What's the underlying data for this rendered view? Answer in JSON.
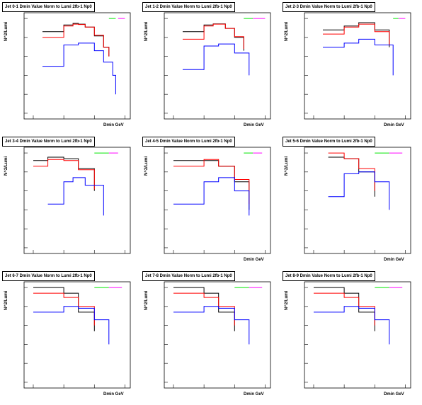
{
  "chart_data": [
    {
      "type": "line",
      "title": "Jet 0-1 Dmin Value Norm to Lumi 2fb-1 Np0",
      "xlabel": "Dmin GeV",
      "ylabel": "N^2/Lumi",
      "log_x": true,
      "log_y": true,
      "legend": {
        "placement": "top-right",
        "entries": []
      },
      "series": [
        {
          "color": "#000000",
          "points": [
            [
              0.2,
              2.0
            ],
            [
              1,
              4.5
            ],
            [
              2,
              5.5
            ],
            [
              3,
              5.0
            ],
            [
              5,
              3.5
            ],
            [
              10,
              1.2
            ],
            [
              20,
              0.3
            ],
            [
              30,
              0.1
            ]
          ]
        },
        {
          "color": "#ff0000",
          "points": [
            [
              0.2,
              1.0
            ],
            [
              1,
              4.0
            ],
            [
              2,
              5.0
            ],
            [
              3,
              4.8
            ],
            [
              5,
              3.5
            ],
            [
              10,
              1.3
            ],
            [
              20,
              0.3
            ],
            [
              30,
              0.1
            ]
          ]
        },
        {
          "color": "#0000ff",
          "points": [
            [
              0.2,
              0.03
            ],
            [
              1,
              0.4
            ],
            [
              3,
              0.5
            ],
            [
              10,
              0.2
            ],
            [
              20,
              0.05
            ],
            [
              40,
              0.01
            ],
            [
              50,
              0.001
            ]
          ]
        },
        {
          "color": "#00e600",
          "points": [
            [
              30,
              10
            ],
            [
              50,
              10
            ]
          ]
        },
        {
          "color": "#ff00ff",
          "points": [
            [
              60,
              10
            ],
            [
              100,
              10
            ]
          ]
        }
      ]
    },
    {
      "type": "line",
      "title": "Jet 1-2 Dmin Value Norm to Lumi 2fb-1 Np0",
      "xlabel": "Dmin GeV",
      "ylabel": "N^2/Lumi",
      "log_x": true,
      "log_y": true,
      "series": [
        {
          "color": "#000000",
          "points": [
            [
              0.2,
              2.0
            ],
            [
              1,
              4.5
            ],
            [
              2,
              5.2
            ],
            [
              5,
              3.0
            ],
            [
              10,
              1.0
            ],
            [
              20,
              0.2
            ]
          ]
        },
        {
          "color": "#ff0000",
          "points": [
            [
              0.2,
              0.8
            ],
            [
              1,
              4.0
            ],
            [
              2,
              5.0
            ],
            [
              5,
              3.0
            ],
            [
              10,
              1.1
            ],
            [
              20,
              0.25
            ]
          ]
        },
        {
          "color": "#0000ff",
          "points": [
            [
              0.2,
              0.02
            ],
            [
              1,
              0.35
            ],
            [
              3,
              0.45
            ],
            [
              10,
              0.15
            ],
            [
              30,
              0.01
            ]
          ]
        },
        {
          "color": "#00e600",
          "points": [
            [
              20,
              10
            ],
            [
              40,
              10
            ]
          ]
        },
        {
          "color": "#ff00ff",
          "points": [
            [
              40,
              10
            ],
            [
              100,
              10
            ]
          ]
        }
      ]
    },
    {
      "type": "line",
      "title": "Jet 2-3 Dmin Value Norm to Lumi 2fb-1 Np0",
      "xlabel": "Dmin GeV",
      "ylabel": "N^2/Lumi",
      "log_x": true,
      "log_y": true,
      "series": [
        {
          "color": "#000000",
          "points": [
            [
              0.2,
              2.5
            ],
            [
              1,
              4.0
            ],
            [
              3,
              6.0
            ],
            [
              10,
              2.5
            ],
            [
              30,
              0.3
            ]
          ]
        },
        {
          "color": "#ff0000",
          "points": [
            [
              0.2,
              1.5
            ],
            [
              1,
              3.5
            ],
            [
              3,
              5.0
            ],
            [
              10,
              2.0
            ],
            [
              30,
              0.4
            ]
          ]
        },
        {
          "color": "#0000ff",
          "points": [
            [
              0.2,
              0.3
            ],
            [
              1,
              0.5
            ],
            [
              3,
              0.8
            ],
            [
              10,
              0.4
            ],
            [
              40,
              0.01
            ]
          ]
        },
        {
          "color": "#00e600",
          "points": [
            [
              40,
              10
            ],
            [
              60,
              10
            ]
          ]
        },
        {
          "color": "#ff00ff",
          "points": [
            [
              60,
              10
            ],
            [
              100,
              10
            ]
          ]
        }
      ]
    },
    {
      "type": "line",
      "title": "Jet 3-4 Dmin Value Norm to Lumi 2fb-1 Np0",
      "xlabel": "",
      "ylabel": "N^2/Lumi",
      "log_x": true,
      "log_y": true,
      "series": [
        {
          "color": "#000000",
          "points": [
            [
              0.1,
              4.0
            ],
            [
              0.3,
              6.0
            ],
            [
              1,
              5.0
            ],
            [
              3,
              1.5
            ],
            [
              10,
              0.1
            ]
          ]
        },
        {
          "color": "#ff0000",
          "points": [
            [
              0.1,
              2.0
            ],
            [
              0.3,
              4.5
            ],
            [
              1,
              4.0
            ],
            [
              3,
              1.3
            ],
            [
              10,
              0.12
            ]
          ]
        },
        {
          "color": "#0000ff",
          "points": [
            [
              0.3,
              0.02
            ],
            [
              1,
              0.3
            ],
            [
              2,
              0.5
            ],
            [
              5,
              0.2
            ],
            [
              20,
              0.005
            ]
          ]
        },
        {
          "color": "#00e600",
          "points": [
            [
              10,
              10
            ],
            [
              30,
              10
            ]
          ]
        },
        {
          "color": "#ff00ff",
          "points": [
            [
              30,
              10
            ],
            [
              60,
              10
            ]
          ]
        }
      ]
    },
    {
      "type": "line",
      "title": "Jet 4-5 Dmin Value Norm to Lumi 2fb-1 Np0",
      "xlabel": "Dmin GeV",
      "ylabel": "N^2/Lumi",
      "log_x": true,
      "log_y": true,
      "series": [
        {
          "color": "#000000",
          "points": [
            [
              0.1,
              4.0
            ],
            [
              1,
              4.0
            ],
            [
              3,
              2.0
            ],
            [
              10,
              0.3
            ],
            [
              30,
              0.01
            ]
          ]
        },
        {
          "color": "#ff0000",
          "points": [
            [
              0.1,
              2.0
            ],
            [
              1,
              4.5
            ],
            [
              3,
              2.0
            ],
            [
              10,
              0.4
            ],
            [
              30,
              0.02
            ]
          ]
        },
        {
          "color": "#0000ff",
          "points": [
            [
              0.1,
              0.02
            ],
            [
              1,
              0.3
            ],
            [
              3,
              0.5
            ],
            [
              10,
              0.1
            ],
            [
              30,
              0.005
            ]
          ]
        },
        {
          "color": "#00e600",
          "points": [
            [
              20,
              10
            ],
            [
              40,
              10
            ]
          ]
        },
        {
          "color": "#ff00ff",
          "points": [
            [
              40,
              10
            ],
            [
              80,
              10
            ]
          ]
        }
      ]
    },
    {
      "type": "line",
      "title": "Jet 5-6 Dmin Value Norm to Lumi 2fb-1 Np0",
      "xlabel": "Dmin GeV",
      "ylabel": "N^2/Lumi",
      "log_x": true,
      "log_y": true,
      "series": [
        {
          "color": "#000000",
          "points": [
            [
              0.3,
              6.0
            ],
            [
              1,
              5.0
            ],
            [
              3,
              1.0
            ],
            [
              10,
              0.05
            ]
          ]
        },
        {
          "color": "#ff0000",
          "points": [
            [
              0.3,
              10.0
            ],
            [
              1,
              5.0
            ],
            [
              3,
              1.5
            ],
            [
              10,
              0.1
            ]
          ]
        },
        {
          "color": "#0000ff",
          "points": [
            [
              0.3,
              0.05
            ],
            [
              1,
              0.8
            ],
            [
              3,
              1.0
            ],
            [
              10,
              0.3
            ],
            [
              30,
              0.01
            ]
          ]
        },
        {
          "color": "#00e600",
          "points": [
            [
              10,
              10
            ],
            [
              30,
              10
            ]
          ]
        },
        {
          "color": "#ff00ff",
          "points": [
            [
              30,
              10
            ],
            [
              80,
              10
            ]
          ]
        }
      ]
    },
    {
      "type": "line",
      "title": "Jet 6-7 Dmin Value Norm to Lumi 2fb-1 Np0",
      "xlabel": "Dmin GeV",
      "ylabel": "N^2/Lumi",
      "log_x": true,
      "log_y": true,
      "series": [
        {
          "color": "#000000",
          "points": [
            [
              0.1,
              10.0
            ],
            [
              1,
              5.0
            ],
            [
              3,
              0.5
            ],
            [
              10,
              0.05
            ]
          ]
        },
        {
          "color": "#ff0000",
          "points": [
            [
              0.1,
              5.0
            ],
            [
              1,
              3.0
            ],
            [
              3,
              1.0
            ],
            [
              10,
              0.1
            ]
          ]
        },
        {
          "color": "#0000ff",
          "points": [
            [
              0.1,
              0.5
            ],
            [
              1,
              1.0
            ],
            [
              3,
              0.8
            ],
            [
              10,
              0.2
            ],
            [
              30,
              0.01
            ]
          ]
        },
        {
          "color": "#00e600",
          "points": [
            [
              10,
              10
            ],
            [
              30,
              10
            ]
          ]
        },
        {
          "color": "#ff00ff",
          "points": [
            [
              30,
              10
            ],
            [
              80,
              10
            ]
          ]
        }
      ]
    },
    {
      "type": "line",
      "title": "Jet 7-8 Dmin Value Norm to Lumi 2fb-1 Np0",
      "xlabel": "Dmin GeV",
      "ylabel": "N^2/Lumi",
      "log_x": true,
      "log_y": true,
      "series": [
        {
          "color": "#000000",
          "points": [
            [
              0.1,
              10.0
            ],
            [
              1,
              5.0
            ],
            [
              3,
              0.5
            ],
            [
              10,
              0.05
            ]
          ]
        },
        {
          "color": "#ff0000",
          "points": [
            [
              0.1,
              5.0
            ],
            [
              1,
              3.0
            ],
            [
              3,
              1.0
            ],
            [
              10,
              0.1
            ]
          ]
        },
        {
          "color": "#0000ff",
          "points": [
            [
              0.1,
              0.5
            ],
            [
              1,
              1.0
            ],
            [
              3,
              0.8
            ],
            [
              10,
              0.2
            ],
            [
              30,
              0.01
            ]
          ]
        },
        {
          "color": "#00e600",
          "points": [
            [
              10,
              10
            ],
            [
              30,
              10
            ]
          ]
        },
        {
          "color": "#ff00ff",
          "points": [
            [
              30,
              10
            ],
            [
              80,
              10
            ]
          ]
        }
      ]
    },
    {
      "type": "line",
      "title": "Jet 8-9 Dmin Value Norm to Lumi 2fb-1 Np0",
      "xlabel": "Dmin GeV",
      "ylabel": "N^2/Lumi",
      "log_x": true,
      "log_y": true,
      "series": [
        {
          "color": "#000000",
          "points": [
            [
              0.1,
              10.0
            ],
            [
              1,
              5.0
            ],
            [
              3,
              0.5
            ],
            [
              10,
              0.05
            ]
          ]
        },
        {
          "color": "#ff0000",
          "points": [
            [
              0.1,
              5.0
            ],
            [
              1,
              3.0
            ],
            [
              3,
              1.0
            ],
            [
              10,
              0.1
            ]
          ]
        },
        {
          "color": "#0000ff",
          "points": [
            [
              0.1,
              0.5
            ],
            [
              1,
              1.0
            ],
            [
              3,
              0.8
            ],
            [
              10,
              0.2
            ],
            [
              30,
              0.01
            ]
          ]
        },
        {
          "color": "#00e600",
          "points": [
            [
              10,
              10
            ],
            [
              30,
              10
            ]
          ]
        },
        {
          "color": "#ff00ff",
          "points": [
            [
              30,
              10
            ],
            [
              80,
              10
            ]
          ]
        }
      ]
    }
  ]
}
